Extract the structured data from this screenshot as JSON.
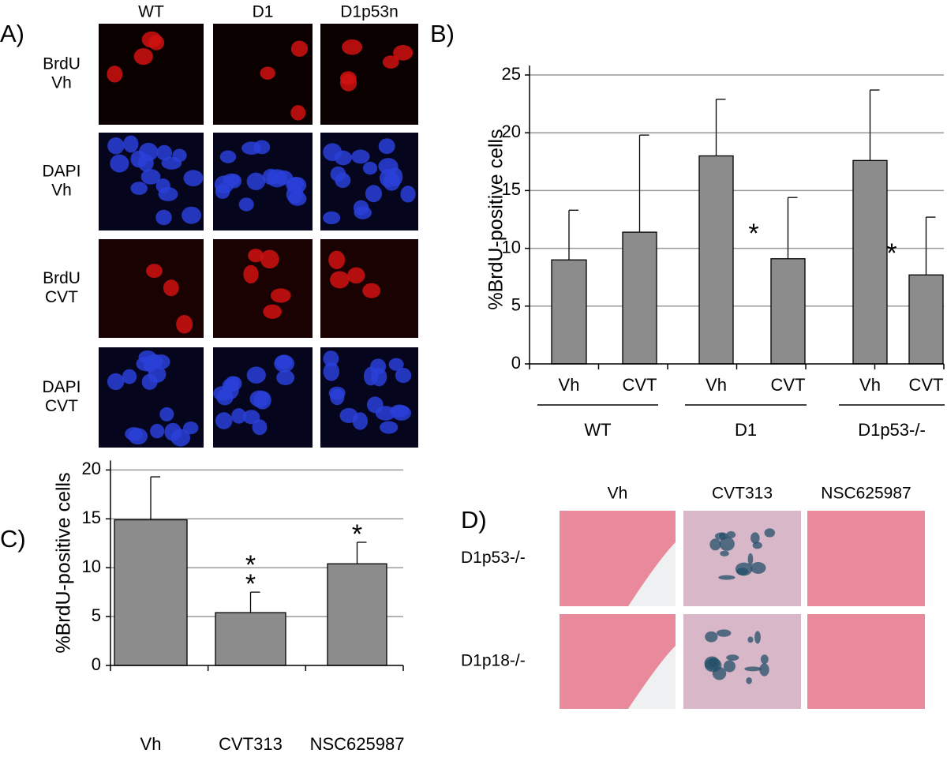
{
  "panels": {
    "a": {
      "label": "A)",
      "columns": [
        "WT",
        "D1",
        "D1p53n"
      ],
      "rows": [
        [
          "BrdU",
          "Vh"
        ],
        [
          "DAPI",
          "Vh"
        ],
        [
          "BrdU",
          "CVT"
        ],
        [
          "DAPI",
          "CVT"
        ]
      ]
    },
    "d": {
      "label": "D)",
      "columns": [
        "Vh",
        "CVT313",
        "NSC625987"
      ],
      "rows": [
        "D1p53-/-",
        "D1p18-/-"
      ]
    }
  },
  "chart_data": [
    {
      "type": "bar",
      "panel_label": "B)",
      "y_label": "%BrdU-positive cells",
      "categories": [
        "Vh",
        "CVT",
        "Vh",
        "CVT",
        "Vh",
        "CVT"
      ],
      "groups": [
        "WT",
        "D1",
        "D1p53-/-"
      ],
      "values": [
        9.0,
        11.4,
        18.0,
        9.1,
        17.6,
        7.7
      ],
      "errors": [
        4.3,
        8.4,
        4.9,
        5.3,
        6.1,
        5.0
      ],
      "annotations": [
        null,
        null,
        null,
        [
          "*"
        ],
        null,
        [
          "*"
        ]
      ],
      "color": "#8c8c8c",
      "ylim": [
        0,
        25
      ],
      "yticks": [
        0,
        5,
        10,
        15,
        20,
        25
      ],
      "grid": true
    },
    {
      "type": "bar",
      "panel_label": "C)",
      "y_label": "%BrdU-positive cells",
      "categories": [
        "Vh",
        "CVT313",
        "NSC625987"
      ],
      "values": [
        14.9,
        5.4,
        10.4
      ],
      "errors": [
        4.4,
        2.1,
        2.2
      ],
      "annotations": [
        null,
        [
          "*",
          "*"
        ],
        [
          "*"
        ]
      ],
      "color": "#8c8c8c",
      "ylim": [
        0,
        21
      ],
      "yticks": [
        0,
        5,
        10,
        15,
        20
      ],
      "grid": true
    }
  ]
}
